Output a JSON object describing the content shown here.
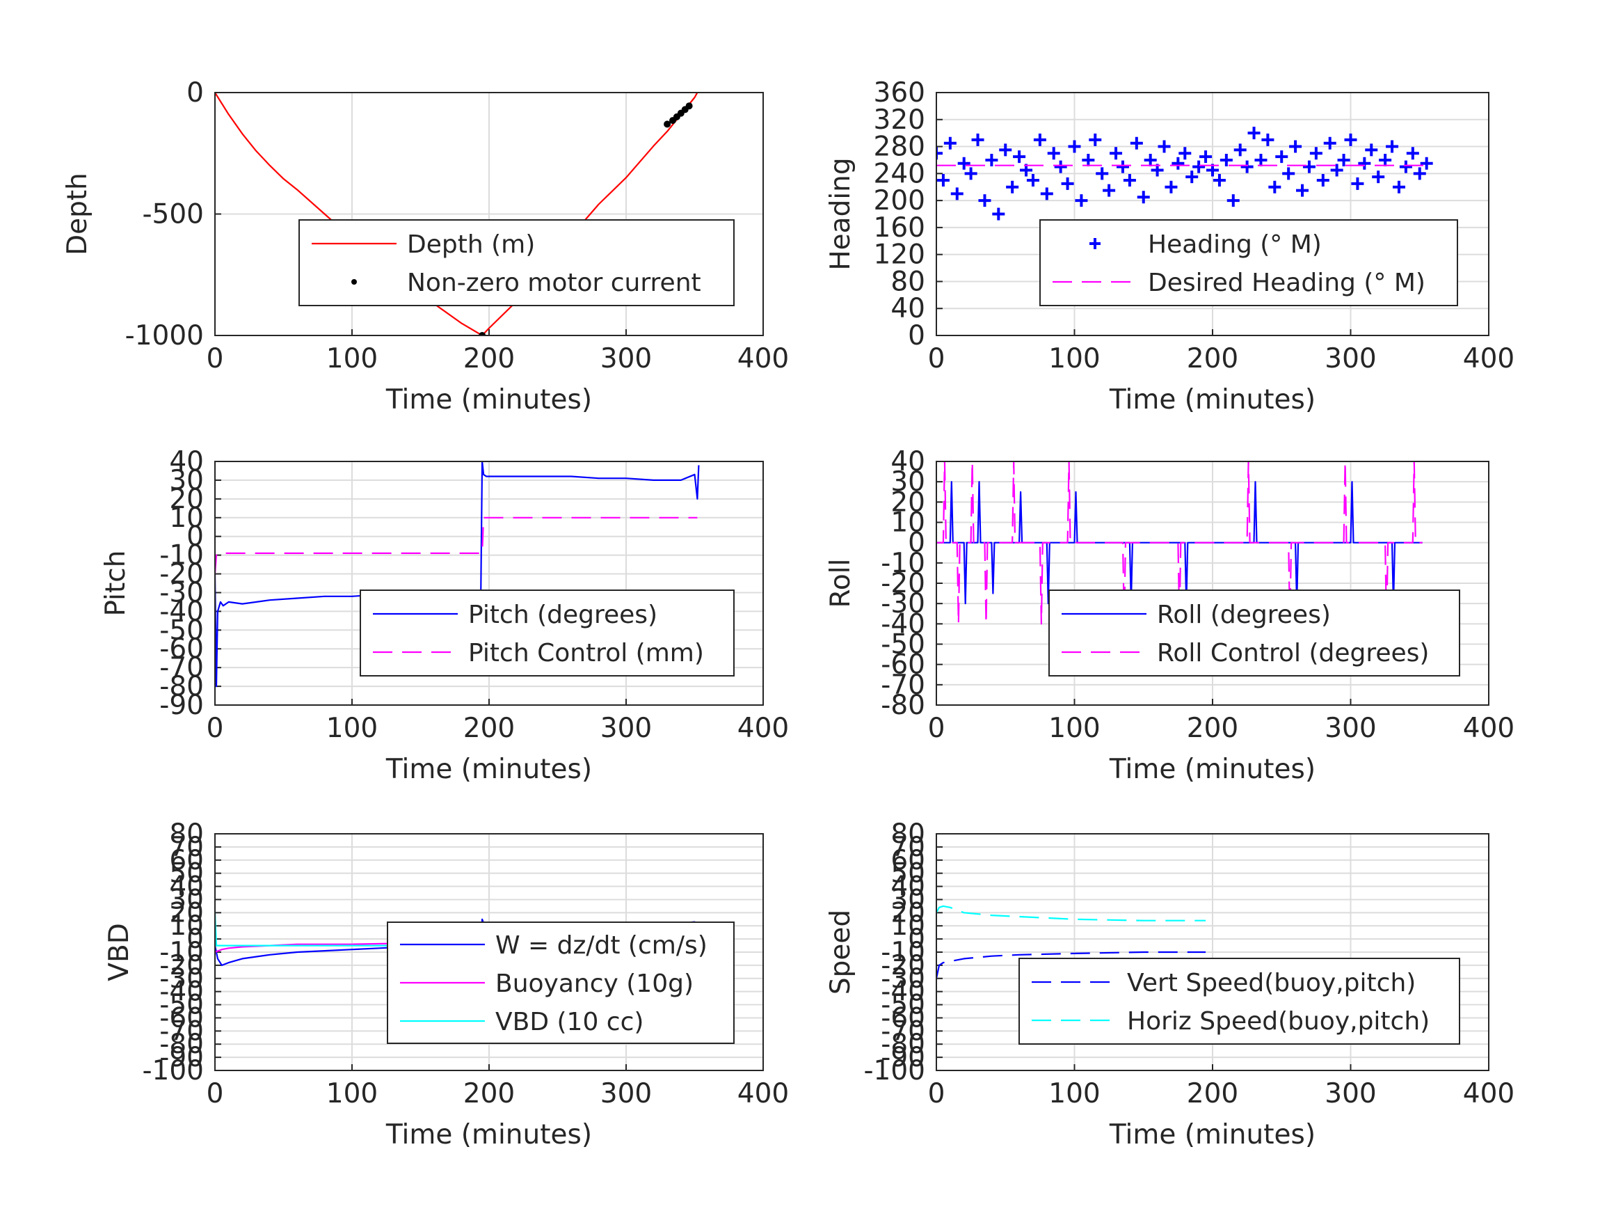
{
  "colors": {
    "red": "#ff0000",
    "blue": "#0000ff",
    "magenta": "#ff00ff",
    "cyan": "#00ffff",
    "black": "#000000",
    "grid": "#dcdcdc",
    "axis": "#262626"
  },
  "chart_data": [
    {
      "id": "depth",
      "type": "line",
      "xlabel": "Time (minutes)",
      "ylabel": "Depth",
      "xlim": [
        0,
        400
      ],
      "ylim": [
        -1000,
        0
      ],
      "xticks": [
        0,
        100,
        200,
        300,
        400
      ],
      "yticks": [
        -1000,
        -500,
        0
      ],
      "grid": true,
      "legend_position": "bottom-center",
      "series": [
        {
          "name": "Depth (m)",
          "style": "solid",
          "marker": "none",
          "color": "#ff0000",
          "x": [
            0,
            10,
            20,
            30,
            40,
            50,
            60,
            80,
            100,
            120,
            140,
            160,
            180,
            195,
            200,
            220,
            240,
            260,
            280,
            300,
            320,
            330,
            340,
            350,
            352
          ],
          "y": [
            0,
            -90,
            -170,
            -240,
            -300,
            -355,
            -400,
            -500,
            -600,
            -700,
            -790,
            -870,
            -950,
            -1000,
            -970,
            -860,
            -740,
            -590,
            -460,
            -350,
            -220,
            -160,
            -90,
            -20,
            0
          ]
        },
        {
          "name": "Non-zero motor current",
          "style": "none",
          "marker": "dot",
          "color": "#000000",
          "x": [
            195,
            260,
            330,
            334,
            337,
            340,
            343,
            346
          ],
          "y": [
            -1000,
            -575,
            -130,
            -115,
            -100,
            -85,
            -70,
            -55
          ]
        }
      ]
    },
    {
      "id": "heading",
      "type": "scatter",
      "xlabel": "Time (minutes)",
      "ylabel": "Heading",
      "xlim": [
        0,
        400
      ],
      "ylim": [
        0,
        360
      ],
      "xticks": [
        0,
        100,
        200,
        300,
        400
      ],
      "yticks": [
        0,
        40,
        80,
        120,
        160,
        200,
        240,
        280,
        320,
        360
      ],
      "grid": true,
      "legend_position": "bottom-right",
      "series": [
        {
          "name": "Heading (° M)",
          "style": "none",
          "marker": "plus",
          "color": "#0000ff",
          "x": [
            0,
            5,
            10,
            15,
            20,
            25,
            30,
            35,
            40,
            45,
            50,
            55,
            60,
            65,
            70,
            75,
            80,
            85,
            90,
            95,
            100,
            105,
            110,
            115,
            120,
            125,
            130,
            135,
            140,
            145,
            150,
            155,
            160,
            165,
            170,
            175,
            180,
            185,
            190,
            195,
            200,
            205,
            210,
            215,
            220,
            225,
            230,
            235,
            240,
            245,
            250,
            255,
            260,
            265,
            270,
            275,
            280,
            285,
            290,
            295,
            300,
            305,
            310,
            315,
            320,
            325,
            330,
            335,
            340,
            345,
            350,
            355
          ],
          "y": [
            270,
            230,
            285,
            210,
            255,
            240,
            290,
            200,
            260,
            180,
            275,
            220,
            265,
            245,
            230,
            290,
            210,
            270,
            250,
            225,
            280,
            200,
            260,
            290,
            240,
            215,
            270,
            250,
            230,
            285,
            205,
            260,
            245,
            280,
            220,
            255,
            270,
            235,
            250,
            265,
            245,
            230,
            260,
            200,
            275,
            250,
            300,
            260,
            290,
            220,
            265,
            240,
            280,
            215,
            250,
            270,
            230,
            285,
            245,
            260,
            290,
            225,
            255,
            275,
            235,
            260,
            280,
            220,
            250,
            270,
            240,
            255
          ]
        },
        {
          "name": "Desired Heading (° M)",
          "style": "dashed",
          "marker": "none",
          "color": "#ff00ff",
          "x": [
            0,
            355
          ],
          "y": [
            252,
            252
          ]
        }
      ]
    },
    {
      "id": "pitch",
      "type": "line",
      "xlabel": "Time (minutes)",
      "ylabel": "Pitch",
      "xlim": [
        0,
        400
      ],
      "ylim": [
        -90,
        40
      ],
      "xticks": [
        0,
        100,
        200,
        300,
        400
      ],
      "yticks": [
        -90,
        -80,
        -70,
        -60,
        -50,
        -40,
        -30,
        -20,
        -10,
        0,
        10,
        20,
        30,
        40
      ],
      "grid": true,
      "legend_position": "bottom-right",
      "series": [
        {
          "name": "Pitch (degrees)",
          "style": "solid",
          "marker": "none",
          "color": "#0000ff",
          "x": [
            0,
            1,
            2,
            4,
            6,
            10,
            20,
            40,
            60,
            80,
            100,
            120,
            140,
            160,
            180,
            194,
            195,
            196,
            198,
            210,
            240,
            260,
            280,
            300,
            320,
            340,
            350,
            352,
            353
          ],
          "y": [
            -20,
            -80,
            -40,
            -35,
            -37,
            -35,
            -36,
            -34,
            -33,
            -32,
            -32,
            -31,
            -31,
            -30,
            -30,
            -30,
            40,
            33,
            32,
            32,
            32,
            32,
            31,
            31,
            30,
            30,
            33,
            20,
            38
          ]
        },
        {
          "name": "Pitch Control (mm)",
          "style": "dashed",
          "marker": "none",
          "color": "#ff00ff",
          "x": [
            0,
            1,
            2,
            195,
            196,
            352
          ],
          "y": [
            -20,
            -10,
            -9,
            -9,
            10,
            10
          ]
        }
      ]
    },
    {
      "id": "roll",
      "type": "line",
      "xlabel": "Time (minutes)",
      "ylabel": "Roll",
      "xlim": [
        0,
        400
      ],
      "ylim": [
        -80,
        40
      ],
      "xticks": [
        0,
        100,
        200,
        300,
        400
      ],
      "yticks": [
        -80,
        -70,
        -60,
        -50,
        -40,
        -30,
        -20,
        -10,
        0,
        10,
        20,
        30,
        40
      ],
      "grid": true,
      "legend_position": "bottom-right",
      "series": [
        {
          "name": "Roll (degrees)",
          "style": "solid",
          "marker": "none",
          "color": "#0000ff",
          "x": [
            0,
            10,
            11,
            12,
            20,
            21,
            22,
            30,
            31,
            32,
            40,
            41,
            42,
            60,
            61,
            62,
            80,
            81,
            82,
            100,
            101,
            102,
            140,
            141,
            142,
            180,
            181,
            182,
            200,
            230,
            231,
            232,
            260,
            261,
            262,
            300,
            301,
            302,
            330,
            331,
            332,
            352
          ],
          "y": [
            0,
            0,
            30,
            0,
            0,
            -30,
            0,
            0,
            30,
            0,
            0,
            -25,
            0,
            0,
            25,
            0,
            0,
            -30,
            0,
            0,
            25,
            0,
            0,
            -30,
            0,
            0,
            -30,
            0,
            0,
            0,
            30,
            0,
            0,
            -30,
            0,
            0,
            30,
            0,
            0,
            -30,
            0,
            0
          ]
        },
        {
          "name": "Roll Control (degrees)",
          "style": "dashed",
          "marker": "none",
          "color": "#ff00ff",
          "x": [
            0,
            5,
            6,
            7,
            15,
            16,
            17,
            25,
            26,
            27,
            35,
            36,
            37,
            55,
            56,
            57,
            75,
            76,
            77,
            95,
            96,
            97,
            135,
            136,
            137,
            175,
            176,
            177,
            225,
            226,
            227,
            255,
            256,
            257,
            295,
            296,
            297,
            325,
            326,
            327,
            345,
            346,
            347,
            352
          ],
          "y": [
            0,
            0,
            40,
            0,
            0,
            -40,
            0,
            0,
            40,
            0,
            0,
            -40,
            0,
            0,
            40,
            0,
            0,
            -40,
            0,
            0,
            40,
            0,
            0,
            -40,
            0,
            0,
            -40,
            0,
            0,
            40,
            0,
            0,
            -40,
            0,
            0,
            40,
            0,
            0,
            -40,
            0,
            0,
            40,
            0,
            0
          ]
        }
      ]
    },
    {
      "id": "vbd",
      "type": "line",
      "xlabel": "Time (minutes)",
      "ylabel": "VBD",
      "xlim": [
        0,
        400
      ],
      "ylim": [
        -100,
        80
      ],
      "xticks": [
        0,
        100,
        200,
        300,
        400
      ],
      "yticks": [
        -100,
        -90,
        -80,
        -70,
        -60,
        -50,
        -40,
        -30,
        -20,
        -10,
        0,
        10,
        20,
        30,
        40,
        50,
        60,
        70,
        80
      ],
      "grid": true,
      "legend_position": "bottom-right",
      "series": [
        {
          "name": "W = dz/dt (cm/s)",
          "style": "solid",
          "marker": "none",
          "color": "#0000ff",
          "x": [
            0,
            2,
            5,
            10,
            20,
            40,
            60,
            80,
            100,
            120,
            140,
            160,
            180,
            194,
            195,
            196,
            200,
            220,
            240,
            260,
            280,
            300,
            320,
            340,
            350,
            352
          ],
          "y": [
            -5,
            -15,
            -20,
            -18,
            -15,
            -12,
            -10,
            -9,
            -8,
            -7,
            -6,
            -5,
            -5,
            -4,
            15,
            12,
            12,
            11,
            10,
            8,
            10,
            10,
            11,
            12,
            13,
            12
          ]
        },
        {
          "name": "Buoyancy (10g)",
          "style": "solid",
          "marker": "none",
          "color": "#ff00ff",
          "x": [
            0,
            5,
            10,
            20,
            40,
            60,
            100,
            150,
            194,
            195,
            352
          ],
          "y": [
            -10,
            -8,
            -7,
            -6,
            -5,
            -4,
            -4,
            -3,
            -3,
            12,
            12
          ]
        },
        {
          "name": "VBD (10 cc)",
          "style": "solid",
          "marker": "none",
          "color": "#00ffff",
          "x": [
            0,
            1,
            2,
            194,
            195,
            352
          ],
          "y": [
            20,
            -5,
            -5,
            -5,
            6,
            6
          ]
        }
      ]
    },
    {
      "id": "speed",
      "type": "line",
      "xlabel": "Time (minutes)",
      "ylabel": "Speed",
      "xlim": [
        0,
        400
      ],
      "ylim": [
        -100,
        80
      ],
      "xticks": [
        0,
        100,
        200,
        300,
        400
      ],
      "yticks": [
        -100,
        -90,
        -80,
        -70,
        -60,
        -50,
        -40,
        -30,
        -20,
        -10,
        0,
        10,
        20,
        30,
        40,
        50,
        60,
        70,
        80
      ],
      "grid": true,
      "legend_position": "bottom-right",
      "series": [
        {
          "name": "Vert Speed(buoy,pitch)",
          "style": "dashed",
          "marker": "none",
          "color": "#0000ff",
          "x": [
            0,
            2,
            5,
            10,
            20,
            40,
            60,
            100,
            150,
            195
          ],
          "y": [
            -30,
            -20,
            -18,
            -17,
            -15,
            -13,
            -12,
            -11,
            -10,
            -10
          ]
        },
        {
          "name": "Horiz Speed(buoy,pitch)",
          "style": "dashed",
          "marker": "none",
          "color": "#00ffff",
          "x": [
            0,
            2,
            5,
            10,
            20,
            40,
            60,
            100,
            150,
            195
          ],
          "y": [
            20,
            24,
            25,
            24,
            20,
            18,
            17,
            15,
            14,
            14
          ]
        }
      ]
    }
  ]
}
